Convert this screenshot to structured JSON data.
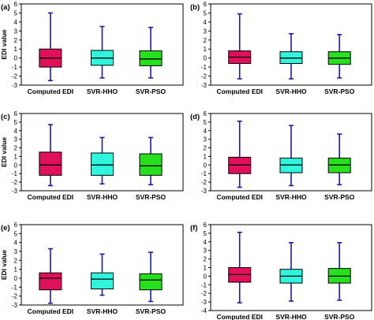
{
  "chart_data": [
    {
      "type": "box",
      "panel": "(a)",
      "ylabel": "EDI value",
      "ylim": [
        -3,
        6
      ],
      "yticks": [
        -3,
        -2,
        -1,
        0,
        1,
        2,
        3,
        4,
        5,
        6
      ],
      "grid": false,
      "categories": [
        "Computed EDI",
        "SVR-HHO",
        "SVR-PSO"
      ],
      "colors": [
        "#e0105a",
        "#2ff5dc",
        "#26e01e"
      ],
      "whisker_color": "#1a1ab0",
      "boxes": [
        {
          "min": -2.5,
          "q1": -1.0,
          "median": 0.0,
          "q3": 1.0,
          "max": 5.0
        },
        {
          "min": -2.2,
          "q1": -0.8,
          "median": 0.0,
          "q3": 0.85,
          "max": 3.5
        },
        {
          "min": -2.2,
          "q1": -0.85,
          "median": -0.1,
          "q3": 0.8,
          "max": 3.4
        }
      ]
    },
    {
      "type": "box",
      "panel": "(b)",
      "ylabel": "",
      "ylim": [
        -3,
        6
      ],
      "yticks": [
        -3,
        -2,
        -1,
        0,
        1,
        2,
        3,
        4,
        5,
        6
      ],
      "grid": false,
      "categories": [
        "Computed EDI",
        "SVR-HHO",
        "SVR-PSO"
      ],
      "colors": [
        "#e0105a",
        "#2ff5dc",
        "#26e01e"
      ],
      "whisker_color": "#1a1ab0",
      "boxes": [
        {
          "min": -2.3,
          "q1": -0.6,
          "median": 0.1,
          "q3": 0.8,
          "max": 4.9
        },
        {
          "min": -2.3,
          "q1": -0.6,
          "median": 0.0,
          "q3": 0.7,
          "max": 2.7
        },
        {
          "min": -2.2,
          "q1": -0.7,
          "median": 0.0,
          "q3": 0.7,
          "max": 2.6
        }
      ]
    },
    {
      "type": "box",
      "panel": "(c)",
      "ylabel": "EDI value",
      "ylim": [
        -3,
        6
      ],
      "yticks": [
        -3,
        -2,
        -1,
        0,
        1,
        2,
        3,
        4,
        5,
        6
      ],
      "grid": false,
      "categories": [
        "Computed EDI",
        "SVR-HHO",
        "SVR-PSO"
      ],
      "colors": [
        "#e0105a",
        "#2ff5dc",
        "#26e01e"
      ],
      "whisker_color": "#1a1ab0",
      "boxes": [
        {
          "min": -2.4,
          "q1": -1.2,
          "median": 0.0,
          "q3": 1.5,
          "max": 4.7
        },
        {
          "min": -2.2,
          "q1": -1.2,
          "median": 0.0,
          "q3": 1.4,
          "max": 3.2
        },
        {
          "min": -2.3,
          "q1": -1.2,
          "median": -0.1,
          "q3": 1.3,
          "max": 3.2
        }
      ]
    },
    {
      "type": "box",
      "panel": "(d)",
      "ylabel": "",
      "ylim": [
        -3,
        6
      ],
      "yticks": [
        -3,
        -2,
        -1,
        0,
        1,
        2,
        3,
        4,
        5,
        6
      ],
      "grid": false,
      "categories": [
        "Computed EDI",
        "SVR-HHO",
        "SVR-PSO"
      ],
      "colors": [
        "#e0105a",
        "#2ff5dc",
        "#26e01e"
      ],
      "whisker_color": "#1a1ab0",
      "boxes": [
        {
          "min": -2.6,
          "q1": -1.0,
          "median": 0.0,
          "q3": 0.9,
          "max": 5.1
        },
        {
          "min": -2.4,
          "q1": -0.9,
          "median": 0.0,
          "q3": 0.8,
          "max": 4.6
        },
        {
          "min": -2.3,
          "q1": -0.9,
          "median": 0.0,
          "q3": 0.8,
          "max": 3.6
        }
      ]
    },
    {
      "type": "box",
      "panel": "(e)",
      "ylabel": "EDI value",
      "ylim": [
        -3,
        6
      ],
      "yticks": [
        -3,
        -2,
        -1,
        0,
        1,
        2,
        3,
        4,
        5,
        6
      ],
      "grid": false,
      "categories": [
        "Computed EDI",
        "SVR-HHO",
        "SVR-PSO"
      ],
      "colors": [
        "#e0105a",
        "#2ff5dc",
        "#26e01e"
      ],
      "whisker_color": "#1a1ab0",
      "boxes": [
        {
          "min": -2.8,
          "q1": -1.3,
          "median": 0.0,
          "q3": 0.6,
          "max": 3.3
        },
        {
          "min": -1.9,
          "q1": -1.2,
          "median": -0.1,
          "q3": 0.6,
          "max": 2.7
        },
        {
          "min": -2.6,
          "q1": -1.3,
          "median": -0.2,
          "q3": 0.5,
          "max": 2.9
        }
      ]
    },
    {
      "type": "box",
      "panel": "(f)",
      "ylabel": "",
      "ylim": [
        -4,
        6
      ],
      "yticks": [
        -4,
        -3,
        -2,
        -1,
        0,
        1,
        2,
        3,
        4,
        5,
        6
      ],
      "grid": false,
      "categories": [
        "Computed EDI",
        "SVR-HHO",
        "SVR-PSO"
      ],
      "colors": [
        "#e0105a",
        "#2ff5dc",
        "#26e01e"
      ],
      "whisker_color": "#1a1ab0",
      "boxes": [
        {
          "min": -3.1,
          "q1": -0.7,
          "median": 0.2,
          "q3": 1.0,
          "max": 5.1
        },
        {
          "min": -2.9,
          "q1": -0.8,
          "median": 0.0,
          "q3": 0.8,
          "max": 3.9
        },
        {
          "min": -2.8,
          "q1": -0.8,
          "median": 0.0,
          "q3": 0.9,
          "max": 3.9
        }
      ]
    }
  ]
}
